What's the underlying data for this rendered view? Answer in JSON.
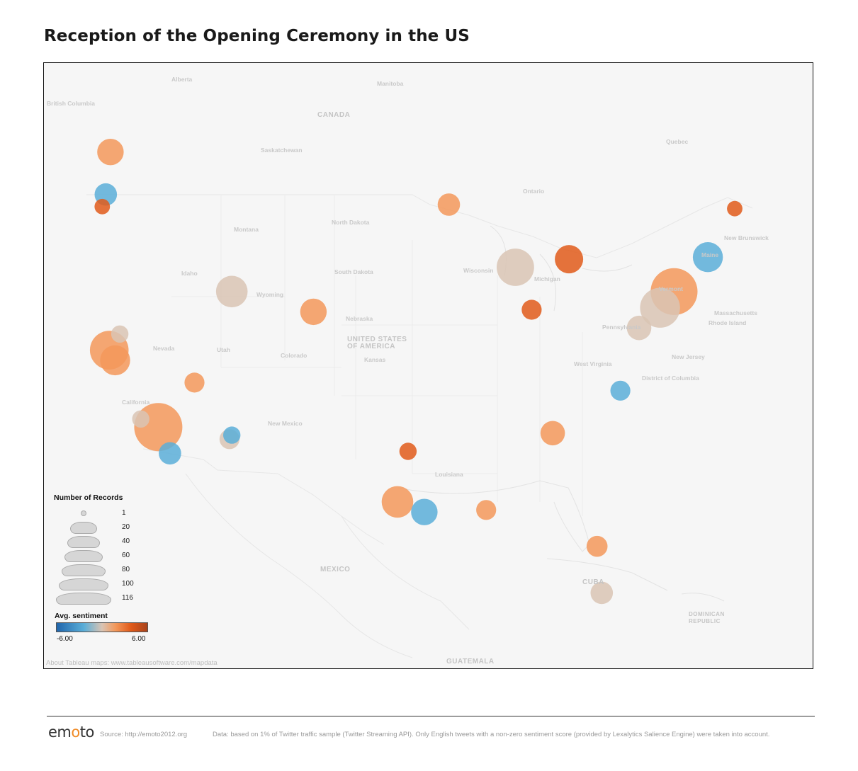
{
  "title": "Reception of the Opening Ceremony in the US",
  "map": {
    "labels": {
      "alberta": "Alberta",
      "manitoba": "Manitoba",
      "british_columbia": "British Columbia",
      "canada": "CANADA",
      "saskatchewan": "Saskatchewan",
      "ontario": "Ontario",
      "quebec": "Quebec",
      "montana": "Montana",
      "north_dakota": "North Dakota",
      "south_dakota": "South Dakota",
      "idaho": "Idaho",
      "wyoming": "Wyoming",
      "wisconsin": "Wisconsin",
      "michigan": "Michigan",
      "nebraska": "Nebraska",
      "nevada": "Nevada",
      "utah": "Utah",
      "colorado": "Colorado",
      "usa": "UNITED STATES OF AMERICA",
      "kansas": "Kansas",
      "california": "California",
      "new_mexico": "New Mexico",
      "louisiana": "Louisiana",
      "mexico": "MEXICO",
      "cuba": "CUBA",
      "guatemala": "GUATEMALA",
      "dominican": "DOMINICAN REPUBLIC",
      "massachusetts": "Massachusetts",
      "rhode_island": "Rhode Island",
      "new_jersey": "New Jersey",
      "west_virginia": "West Virginia",
      "district_of_columbia": "District of Columbia",
      "maine": "Maine",
      "vermont": "Vermont",
      "new_brunswick": "New Brunswick",
      "pennsylvania": "Pennsylvania"
    },
    "about": "About Tableau maps: www.tableausoftware.com/mapdata"
  },
  "legend": {
    "size_title": "Number of Records",
    "size_values": [
      "1",
      "20",
      "40",
      "60",
      "80",
      "100",
      "116"
    ],
    "color_title": "Avg. sentiment",
    "color_min": "-6.00",
    "color_max": "6.00",
    "colors": {
      "strong_negative": "#2166ac",
      "negative": "#5aaed8",
      "neutral": "#d9c4b4",
      "positive": "#f3985a",
      "strong_positive": "#e05a1a",
      "very_strong_positive": "#a8431c"
    }
  },
  "chart_data": {
    "type": "scatter",
    "title": "Reception of the Opening Ceremony in the US",
    "size_field": "Number of Records",
    "color_field": "Avg. sentiment",
    "color_range": [
      -6,
      6
    ],
    "size_range": [
      1,
      116
    ],
    "points": [
      {
        "lon": -122.3,
        "lat": 47.6,
        "records": 35,
        "sentiment": 3.2
      },
      {
        "lon": -122.7,
        "lat": 45.5,
        "records": 25,
        "sentiment": -1.5
      },
      {
        "lon": -123.0,
        "lat": 44.9,
        "records": 12,
        "sentiment": 4.5
      },
      {
        "lon": -122.4,
        "lat": 37.8,
        "records": 75,
        "sentiment": 2.8
      },
      {
        "lon": -121.9,
        "lat": 37.3,
        "records": 45,
        "sentiment": 3.0
      },
      {
        "lon": -121.5,
        "lat": 38.6,
        "records": 15,
        "sentiment": 0.2
      },
      {
        "lon": -118.2,
        "lat": 34.0,
        "records": 116,
        "sentiment": 2.6
      },
      {
        "lon": -117.2,
        "lat": 32.7,
        "records": 25,
        "sentiment": -0.8
      },
      {
        "lon": -119.7,
        "lat": 34.4,
        "records": 15,
        "sentiment": 0.4
      },
      {
        "lon": -111.9,
        "lat": 40.7,
        "records": 50,
        "sentiment": 0.3
      },
      {
        "lon": -104.9,
        "lat": 39.7,
        "records": 35,
        "sentiment": 2.5
      },
      {
        "lon": -112.1,
        "lat": 33.4,
        "records": 20,
        "sentiment": 0.5
      },
      {
        "lon": -111.9,
        "lat": 33.6,
        "records": 15,
        "sentiment": -2.5
      },
      {
        "lon": -115.1,
        "lat": 36.2,
        "records": 20,
        "sentiment": 3.5
      },
      {
        "lon": -97.7,
        "lat": 30.3,
        "records": 50,
        "sentiment": 2.6
      },
      {
        "lon": -95.4,
        "lat": 29.8,
        "records": 35,
        "sentiment": -0.9
      },
      {
        "lon": -96.8,
        "lat": 32.8,
        "records": 15,
        "sentiment": 4.0
      },
      {
        "lon": -93.3,
        "lat": 45.0,
        "records": 25,
        "sentiment": 3.0
      },
      {
        "lon": -87.6,
        "lat": 41.9,
        "records": 70,
        "sentiment": -0.5
      },
      {
        "lon": -83.0,
        "lat": 42.3,
        "records": 40,
        "sentiment": 4.3
      },
      {
        "lon": -84.4,
        "lat": 33.7,
        "records": 30,
        "sentiment": 3.2
      },
      {
        "lon": -80.2,
        "lat": 25.8,
        "records": 25,
        "sentiment": 0.4
      },
      {
        "lon": -80.6,
        "lat": 28.1,
        "records": 22,
        "sentiment": 1.8
      },
      {
        "lon": -75.2,
        "lat": 39.9,
        "records": 80,
        "sentiment": 0.8
      },
      {
        "lon": -74.0,
        "lat": 40.7,
        "records": 110,
        "sentiment": 2.5
      },
      {
        "lon": -71.1,
        "lat": 42.4,
        "records": 45,
        "sentiment": -1.8
      },
      {
        "lon": -77.0,
        "lat": 38.9,
        "records": 30,
        "sentiment": 0.6
      },
      {
        "lon": -78.6,
        "lat": 35.8,
        "records": 20,
        "sentiment": -1.4
      },
      {
        "lon": -86.2,
        "lat": 39.8,
        "records": 20,
        "sentiment": 4.2
      },
      {
        "lon": -90.1,
        "lat": 29.9,
        "records": 20,
        "sentiment": 3.0
      },
      {
        "lon": -68.8,
        "lat": 44.8,
        "records": 12,
        "sentiment": 4.6
      }
    ]
  },
  "footer": {
    "logo": "emoto",
    "source": "Source: http://emoto2012.org",
    "notes": "Data: based on 1% of Twitter traffic sample (Twitter Streaming API). Only English tweets with a non-zero sentiment score (provided by Lexalytics Salience Engine) were taken into account."
  }
}
